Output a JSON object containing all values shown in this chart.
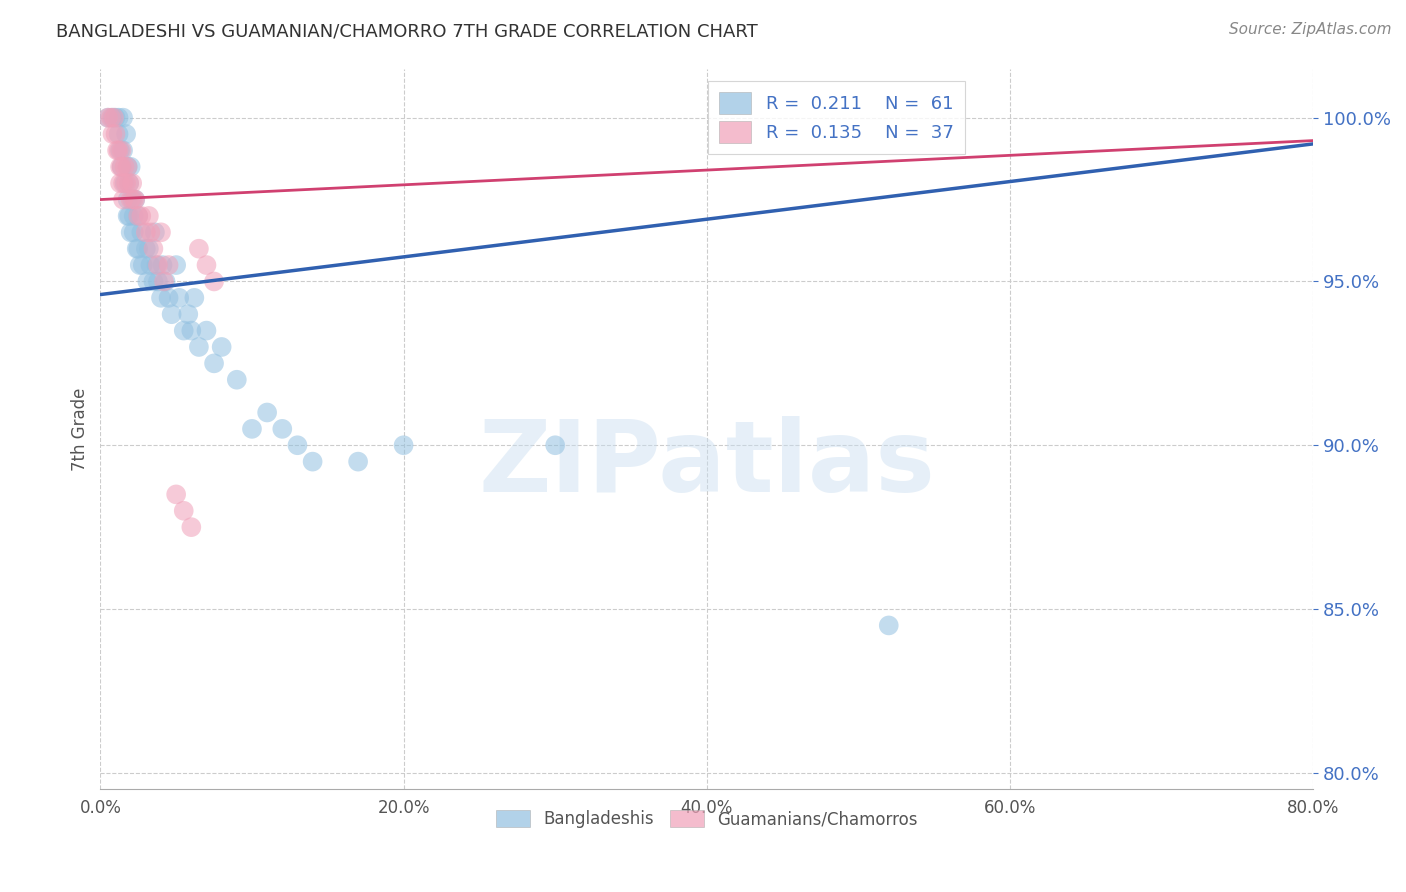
{
  "title": "BANGLADESHI VS GUAMANIAN/CHAMORRO 7TH GRADE CORRELATION CHART",
  "source": "Source: ZipAtlas.com",
  "ylabel": "7th Grade",
  "yticks": [
    80.0,
    85.0,
    90.0,
    95.0,
    100.0
  ],
  "xlim": [
    0.0,
    0.8
  ],
  "ylim": [
    79.5,
    101.5
  ],
  "legend_blue_R": "0.211",
  "legend_blue_N": "61",
  "legend_pink_R": "0.135",
  "legend_pink_N": "37",
  "blue_color": "#92c0e0",
  "pink_color": "#f0a0b8",
  "blue_line_color": "#3060b0",
  "pink_line_color": "#d04070",
  "blue_scatter_x": [
    0.005,
    0.008,
    0.01,
    0.012,
    0.012,
    0.013,
    0.014,
    0.015,
    0.015,
    0.016,
    0.017,
    0.018,
    0.018,
    0.018,
    0.019,
    0.019,
    0.02,
    0.02,
    0.021,
    0.022,
    0.022,
    0.023,
    0.024,
    0.025,
    0.025,
    0.026,
    0.027,
    0.028,
    0.03,
    0.031,
    0.032,
    0.033,
    0.035,
    0.036,
    0.037,
    0.038,
    0.04,
    0.041,
    0.043,
    0.045,
    0.047,
    0.05,
    0.052,
    0.055,
    0.058,
    0.06,
    0.062,
    0.065,
    0.07,
    0.075,
    0.08,
    0.09,
    0.1,
    0.11,
    0.12,
    0.13,
    0.14,
    0.17,
    0.2,
    0.3,
    0.52
  ],
  "blue_scatter_y": [
    100.0,
    100.0,
    100.0,
    100.0,
    99.5,
    99.0,
    98.5,
    100.0,
    99.0,
    98.0,
    99.5,
    98.5,
    97.5,
    97.0,
    98.0,
    97.0,
    98.5,
    96.5,
    97.5,
    97.0,
    96.5,
    97.5,
    96.0,
    97.0,
    96.0,
    95.5,
    96.5,
    95.5,
    96.0,
    95.0,
    96.0,
    95.5,
    95.0,
    96.5,
    95.5,
    95.0,
    94.5,
    95.5,
    95.0,
    94.5,
    94.0,
    95.5,
    94.5,
    93.5,
    94.0,
    93.5,
    94.5,
    93.0,
    93.5,
    92.5,
    93.0,
    92.0,
    90.5,
    91.0,
    90.5,
    90.0,
    89.5,
    89.5,
    90.0,
    90.0,
    84.5
  ],
  "pink_scatter_x": [
    0.005,
    0.007,
    0.008,
    0.009,
    0.01,
    0.011,
    0.012,
    0.013,
    0.013,
    0.014,
    0.014,
    0.015,
    0.015,
    0.016,
    0.017,
    0.018,
    0.019,
    0.02,
    0.021,
    0.022,
    0.023,
    0.025,
    0.027,
    0.03,
    0.032,
    0.033,
    0.035,
    0.038,
    0.04,
    0.042,
    0.045,
    0.05,
    0.055,
    0.06,
    0.065,
    0.07,
    0.075
  ],
  "pink_scatter_y": [
    100.0,
    100.0,
    99.5,
    100.0,
    99.5,
    99.0,
    99.0,
    98.5,
    98.0,
    99.0,
    98.5,
    98.0,
    97.5,
    98.5,
    98.0,
    98.5,
    98.0,
    97.5,
    98.0,
    97.5,
    97.5,
    97.0,
    97.0,
    96.5,
    97.0,
    96.5,
    96.0,
    95.5,
    96.5,
    95.0,
    95.5,
    88.5,
    88.0,
    87.5,
    96.0,
    95.5,
    95.0
  ],
  "blue_trendline_x": [
    0.0,
    0.8
  ],
  "blue_trendline_y": [
    94.6,
    99.2
  ],
  "pink_trendline_x": [
    0.0,
    0.8
  ],
  "pink_trendline_y": [
    97.5,
    99.3
  ],
  "watermark_zip": "ZIP",
  "watermark_atlas": "atlas",
  "background_color": "#ffffff",
  "grid_color": "#cccccc"
}
